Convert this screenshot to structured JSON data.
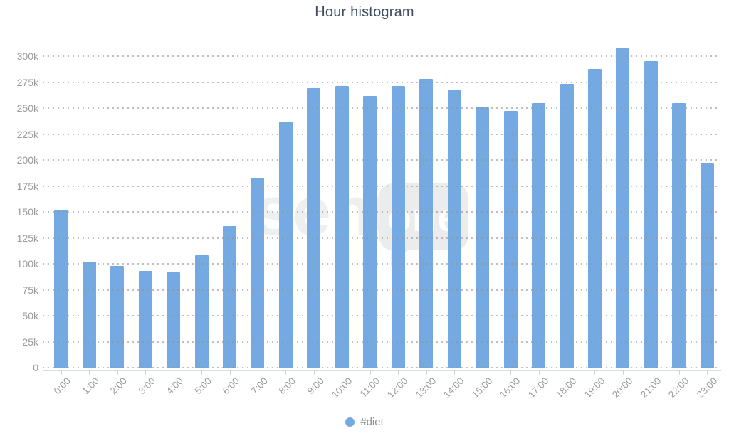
{
  "header": {
    "title": "Hour histogram",
    "title_color": "#3d4d63"
  },
  "legend": {
    "label": "#diet",
    "marker_color": "#74a9e1"
  },
  "watermark": {
    "left_text": "senti",
    "bubble_text": "one"
  },
  "colors": {
    "bar": "#74a9e1",
    "grid_dot": "#949494",
    "axis_line": "#d6dce4",
    "tick_label": "#9b9b9b"
  },
  "chart_data": {
    "type": "bar",
    "title": "Hour histogram",
    "categories": [
      "0:00",
      "1:00",
      "2:00",
      "3:00",
      "4:00",
      "5:00",
      "6:00",
      "7:00",
      "8:00",
      "9:00",
      "10:00",
      "11:00",
      "12:00",
      "13:00",
      "14:00",
      "15:00",
      "16:00",
      "17:00",
      "18:00",
      "19:00",
      "20:00",
      "21:00",
      "22:00",
      "23:00"
    ],
    "series": [
      {
        "name": "#diet",
        "color": "#74a9e1",
        "values": [
          152000,
          102000,
          98000,
          93000,
          92000,
          108000,
          136000,
          183000,
          237000,
          269000,
          271000,
          262000,
          271000,
          278000,
          268000,
          251000,
          247000,
          255000,
          273000,
          288000,
          308000,
          295000,
          255000,
          197000
        ]
      }
    ],
    "xlabel": "",
    "ylabel": "",
    "ylim": [
      0,
      316000
    ],
    "ytick_values": [
      0,
      25000,
      50000,
      75000,
      100000,
      125000,
      150000,
      175000,
      200000,
      225000,
      250000,
      275000,
      300000
    ],
    "ytick_labels": [
      "0",
      "25k",
      "50k",
      "75k",
      "100k",
      "125k",
      "150k",
      "175k",
      "200k",
      "225k",
      "250k",
      "275k",
      "300k"
    ],
    "grid": "horizontal-dotted",
    "legend_position": "bottom-center",
    "x_labels_rotation_deg": -45
  }
}
